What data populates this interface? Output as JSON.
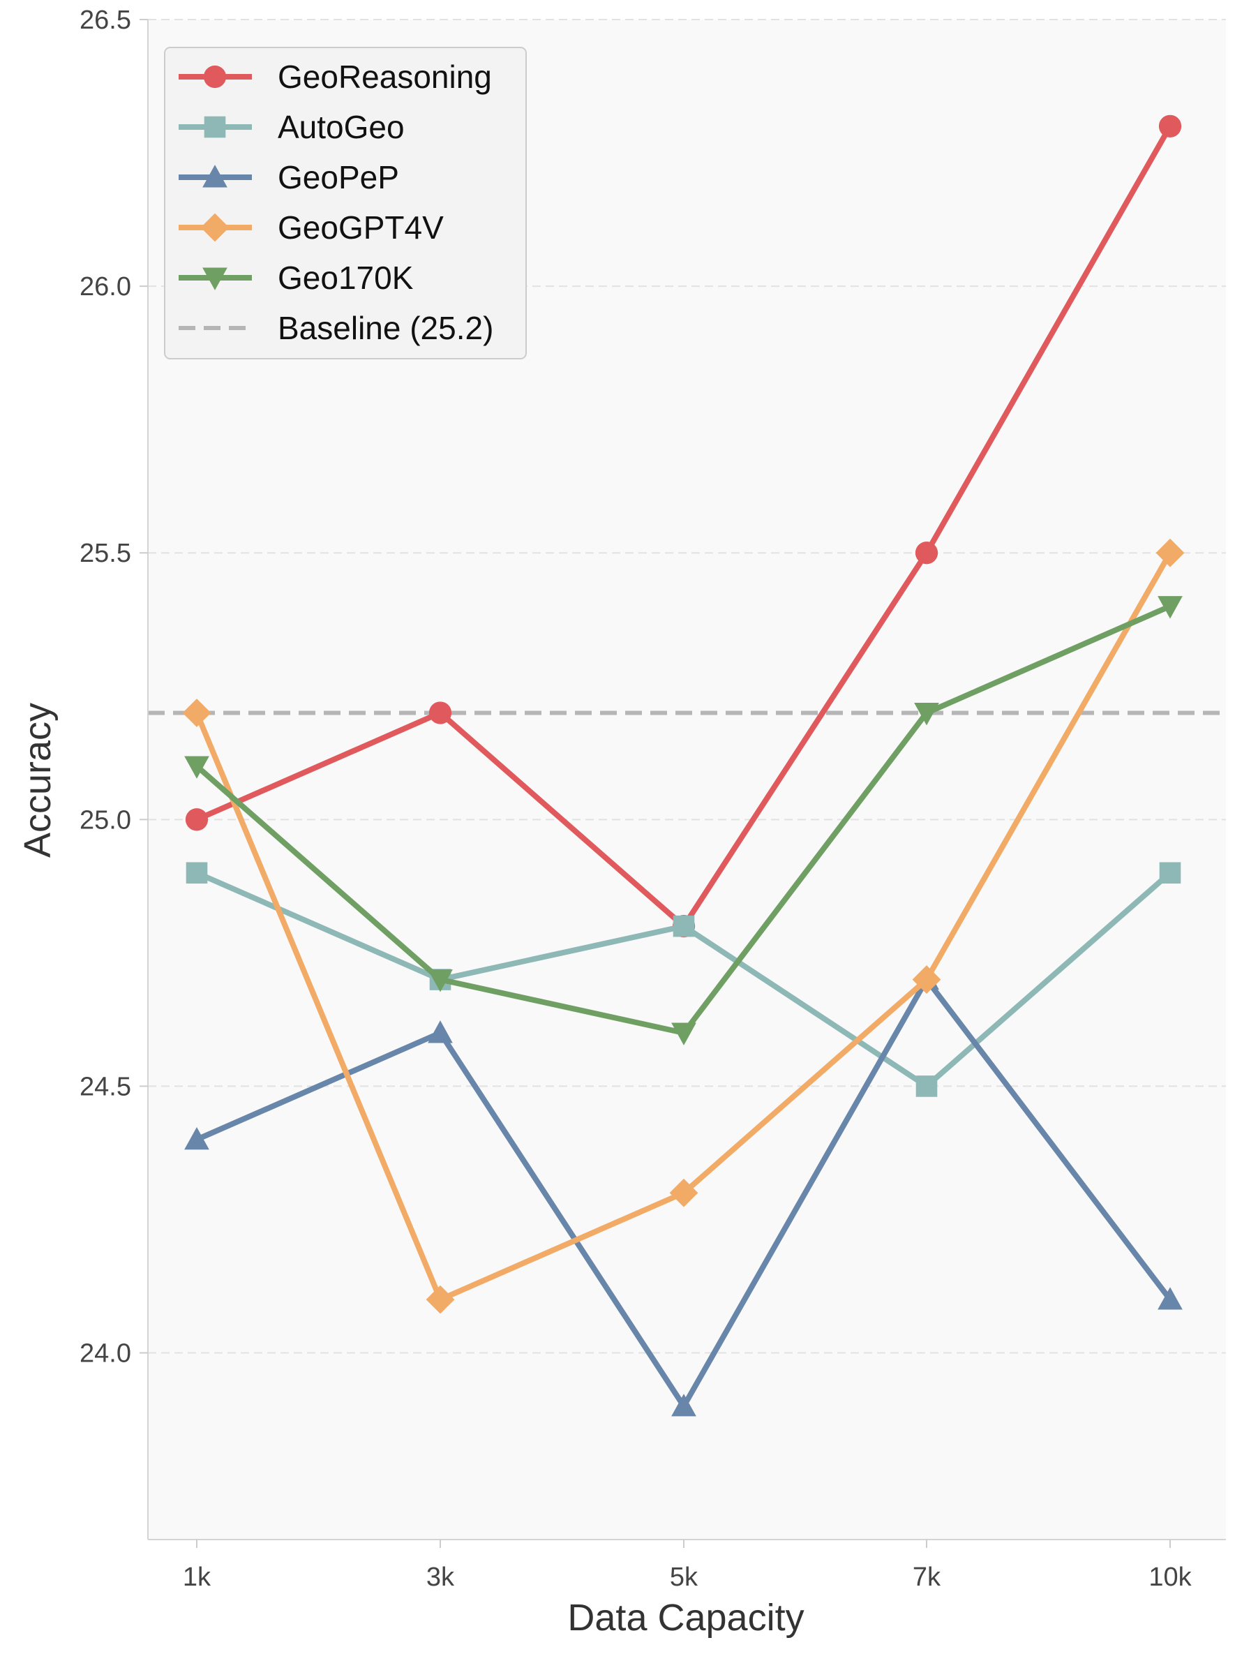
{
  "chart_data": {
    "type": "line",
    "categories": [
      "1k",
      "3k",
      "5k",
      "7k",
      "10k"
    ],
    "xlabel": "Data Capacity",
    "ylabel": "Accuracy",
    "ylim": [
      23.65,
      26.5
    ],
    "yticks": [
      "24.0",
      "24.5",
      "25.0",
      "25.5",
      "26.0",
      "26.5"
    ],
    "grid": "horizontal dashed",
    "legend_position": "top-left",
    "series": [
      {
        "name": "GeoReasoning",
        "color": "#e05a5d",
        "marker": "circle",
        "values": [
          25.0,
          25.2,
          24.8,
          25.5,
          26.3
        ]
      },
      {
        "name": "AutoGeo",
        "color": "#8db8b6",
        "marker": "square",
        "values": [
          24.9,
          24.7,
          24.8,
          24.5,
          24.9
        ]
      },
      {
        "name": "GeoPeP",
        "color": "#6786aa",
        "marker": "triangle-up",
        "values": [
          24.4,
          24.6,
          23.9,
          24.7,
          24.1
        ]
      },
      {
        "name": "GeoGPT4V",
        "color": "#f2ab66",
        "marker": "diamond",
        "values": [
          25.2,
          24.1,
          24.3,
          24.7,
          25.5
        ]
      },
      {
        "name": "Geo170K",
        "color": "#6f9f63",
        "marker": "triangle-down",
        "values": [
          25.1,
          24.7,
          24.6,
          25.2,
          25.4
        ]
      }
    ],
    "baseline": {
      "name": "Baseline (25.2)",
      "value": 25.2,
      "color": "#b5b5b5"
    }
  }
}
